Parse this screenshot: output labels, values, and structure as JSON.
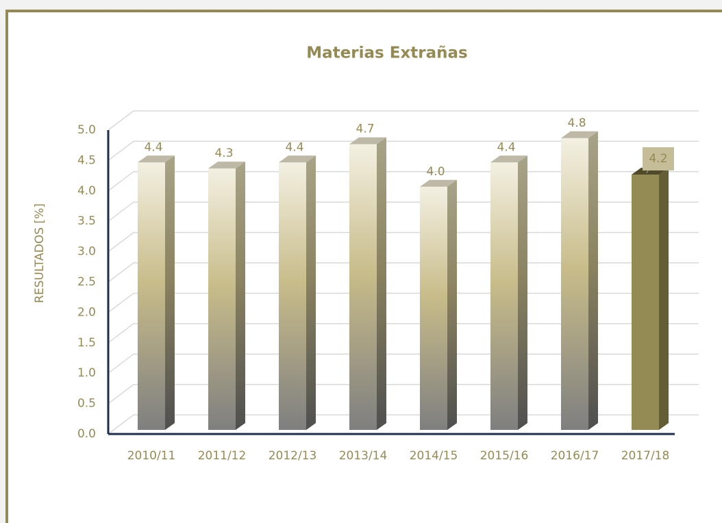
{
  "chart_data": {
    "type": "bar3d",
    "title": "Materias Extrañas",
    "y_label": "RESULTADOS [%]",
    "categories": [
      "2010/11",
      "2011/12",
      "2012/13",
      "2013/14",
      "2014/15",
      "2015/16",
      "2016/17",
      "2017/18"
    ],
    "values": [
      4.4,
      4.3,
      4.4,
      4.7,
      4.0,
      4.4,
      4.8,
      4.2
    ],
    "value_labels": [
      "4.4",
      "4.3",
      "4.4",
      "4.7",
      "4.0",
      "4.4",
      "4.8",
      "4.2"
    ],
    "colors": [
      "#c8bc8a",
      "#c8bc8a",
      "#c8bc8a",
      "#c8bc8a",
      "#c8bc8a",
      "#c8bc8a",
      "#c8bc8a",
      "#948a54"
    ],
    "ylim": [
      0,
      5
    ],
    "yticks": [
      {
        "value": 0,
        "label": "0.0"
      },
      0.5,
      {
        "value": 1,
        "label": "1.0"
      },
      1.5,
      {
        "value": 2,
        "label": "2.0"
      },
      2.5,
      {
        "value": 3,
        "label": "3.0"
      },
      3.5,
      {
        "value": 4,
        "label": "4.0"
      },
      4.5,
      {
        "value": 5,
        "label": "5.0"
      }
    ],
    "grid": true
  }
}
